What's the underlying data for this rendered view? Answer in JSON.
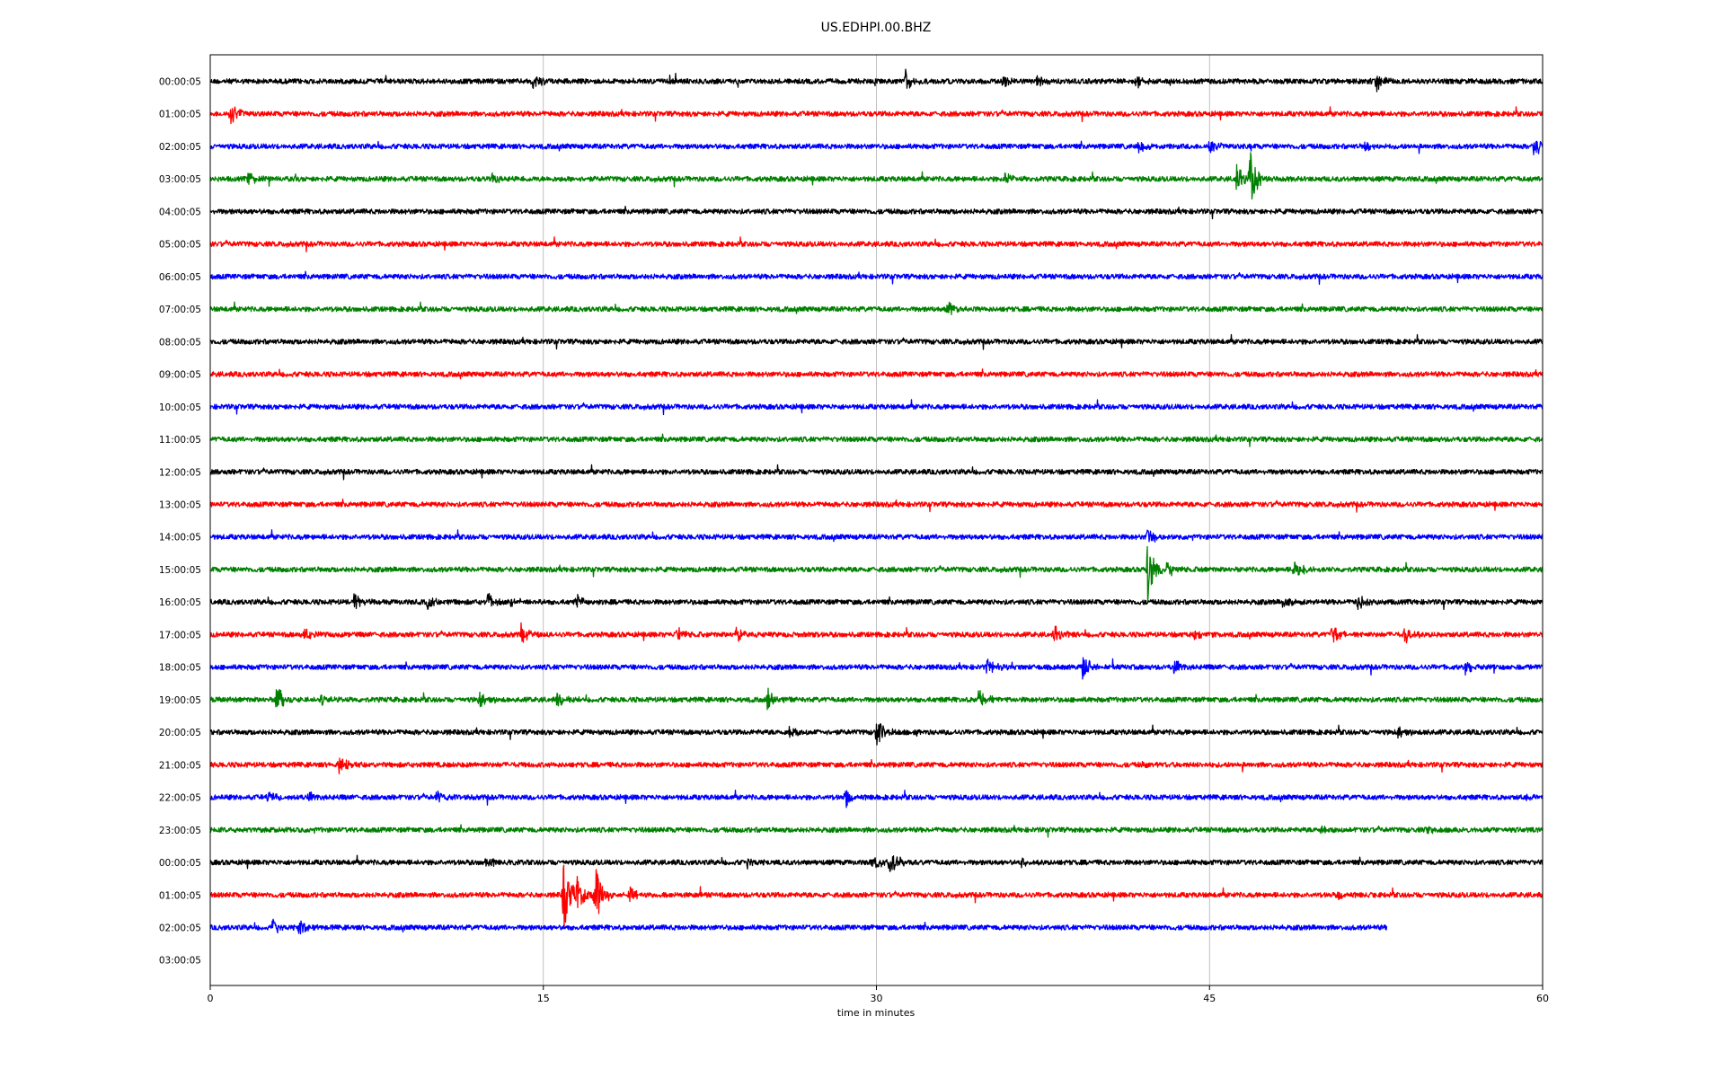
{
  "chart_data": {
    "type": "line",
    "title": "US.EDHPI.00.BHZ",
    "xlabel": "time in minutes",
    "ylabel": "",
    "xlim": [
      0,
      60
    ],
    "xticks": [
      0,
      15,
      30,
      45,
      60
    ],
    "grid": "vertical",
    "row_labels": [
      "00:00:05",
      "01:00:05",
      "02:00:05",
      "03:00:05",
      "04:00:05",
      "05:00:05",
      "06:00:05",
      "07:00:05",
      "08:00:05",
      "09:00:05",
      "10:00:05",
      "11:00:05",
      "12:00:05",
      "13:00:05",
      "14:00:05",
      "15:00:05",
      "16:00:05",
      "17:00:05",
      "18:00:05",
      "19:00:05",
      "20:00:05",
      "21:00:05",
      "22:00:05",
      "23:00:05",
      "00:00:05",
      "01:00:05",
      "02:00:05",
      "03:00:05"
    ],
    "color_cycle": [
      "#000000",
      "#ff0000",
      "#0000ff",
      "#008000"
    ],
    "trace_end_minutes": [
      60,
      60,
      60,
      60,
      60,
      60,
      60,
      60,
      60,
      60,
      60,
      60,
      60,
      60,
      60,
      60,
      60,
      60,
      60,
      60,
      60,
      60,
      60,
      60,
      60,
      60,
      53,
      0
    ],
    "events": [
      {
        "row": 0,
        "t": 14.5,
        "amp": 0.35
      },
      {
        "row": 0,
        "t": 31.3,
        "amp": 0.45
      },
      {
        "row": 0,
        "t": 35.7,
        "amp": 0.2
      },
      {
        "row": 0,
        "t": 37.2,
        "amp": 0.2
      },
      {
        "row": 0,
        "t": 41.7,
        "amp": 0.25
      },
      {
        "row": 0,
        "t": 52.5,
        "amp": 0.4
      },
      {
        "row": 1,
        "t": 0.9,
        "amp": 0.45
      },
      {
        "row": 2,
        "t": 41.8,
        "amp": 0.25
      },
      {
        "row": 2,
        "t": 45,
        "amp": 0.3
      },
      {
        "row": 2,
        "t": 52,
        "amp": 0.2
      },
      {
        "row": 2,
        "t": 59.6,
        "amp": 0.45
      },
      {
        "row": 3,
        "t": 1.7,
        "amp": 0.25
      },
      {
        "row": 3,
        "t": 12.7,
        "amp": 0.2
      },
      {
        "row": 3,
        "t": 35.8,
        "amp": 0.25
      },
      {
        "row": 3,
        "t": 46.2,
        "amp": 0.5
      },
      {
        "row": 3,
        "t": 46.8,
        "amp": 1.1
      },
      {
        "row": 7,
        "t": 33.2,
        "amp": 0.3
      },
      {
        "row": 14,
        "t": 42.2,
        "amp": 0.35
      },
      {
        "row": 15,
        "t": 42.2,
        "amp": 1.3
      },
      {
        "row": 15,
        "t": 43.1,
        "amp": 0.4
      },
      {
        "row": 15,
        "t": 48.8,
        "amp": 0.45
      },
      {
        "row": 16,
        "t": 6.5,
        "amp": 0.4
      },
      {
        "row": 16,
        "t": 9.8,
        "amp": 0.25
      },
      {
        "row": 16,
        "t": 12.5,
        "amp": 0.35
      },
      {
        "row": 16,
        "t": 13.5,
        "amp": 0.3
      },
      {
        "row": 16,
        "t": 16.5,
        "amp": 0.3
      },
      {
        "row": 16,
        "t": 48.3,
        "amp": 0.25
      },
      {
        "row": 16,
        "t": 51.7,
        "amp": 0.3
      },
      {
        "row": 17,
        "t": 4.2,
        "amp": 0.25
      },
      {
        "row": 17,
        "t": 14,
        "amp": 0.35
      },
      {
        "row": 17,
        "t": 21,
        "amp": 0.3
      },
      {
        "row": 17,
        "t": 23.7,
        "amp": 0.3
      },
      {
        "row": 17,
        "t": 38,
        "amp": 0.3
      },
      {
        "row": 17,
        "t": 44.3,
        "amp": 0.3
      },
      {
        "row": 17,
        "t": 50.5,
        "amp": 0.35
      },
      {
        "row": 17,
        "t": 53.8,
        "amp": 0.45
      },
      {
        "row": 18,
        "t": 35,
        "amp": 0.35
      },
      {
        "row": 18,
        "t": 39.3,
        "amp": 0.6
      },
      {
        "row": 18,
        "t": 43.4,
        "amp": 0.35
      },
      {
        "row": 18,
        "t": 56.5,
        "amp": 0.25
      },
      {
        "row": 19,
        "t": 3,
        "amp": 0.6
      },
      {
        "row": 19,
        "t": 5,
        "amp": 0.25
      },
      {
        "row": 19,
        "t": 12.1,
        "amp": 0.3
      },
      {
        "row": 19,
        "t": 15.6,
        "amp": 0.3
      },
      {
        "row": 19,
        "t": 25.1,
        "amp": 0.45
      },
      {
        "row": 19,
        "t": 34.6,
        "amp": 0.45
      },
      {
        "row": 20,
        "t": 26.1,
        "amp": 0.25
      },
      {
        "row": 20,
        "t": 30,
        "amp": 0.5
      },
      {
        "row": 20,
        "t": 53.5,
        "amp": 0.2
      },
      {
        "row": 21,
        "t": 5.8,
        "amp": 0.35
      },
      {
        "row": 21,
        "t": 41.8,
        "amp": 0.15
      },
      {
        "row": 22,
        "t": 2.6,
        "amp": 0.25
      },
      {
        "row": 22,
        "t": 4.4,
        "amp": 0.25
      },
      {
        "row": 22,
        "t": 10.2,
        "amp": 0.25
      },
      {
        "row": 22,
        "t": 28.6,
        "amp": 0.35
      },
      {
        "row": 22,
        "t": 59.3,
        "amp": 0.2
      },
      {
        "row": 23,
        "t": 50,
        "amp": 0.15
      },
      {
        "row": 23,
        "t": 54.8,
        "amp": 0.15
      },
      {
        "row": 24,
        "t": 12.4,
        "amp": 0.2
      },
      {
        "row": 24,
        "t": 24.2,
        "amp": 0.2
      },
      {
        "row": 24,
        "t": 29.8,
        "amp": 0.25
      },
      {
        "row": 24,
        "t": 30.6,
        "amp": 0.6
      },
      {
        "row": 24,
        "t": 36.5,
        "amp": 0.2
      },
      {
        "row": 25,
        "t": 15.9,
        "amp": 1.4
      },
      {
        "row": 25,
        "t": 16.5,
        "amp": 0.9
      },
      {
        "row": 25,
        "t": 17.3,
        "amp": 1.3
      },
      {
        "row": 25,
        "t": 18.9,
        "amp": 0.3
      },
      {
        "row": 25,
        "t": 50.8,
        "amp": 0.2
      },
      {
        "row": 26,
        "t": 2.8,
        "amp": 0.3
      },
      {
        "row": 26,
        "t": 4.0,
        "amp": 0.3
      }
    ]
  }
}
